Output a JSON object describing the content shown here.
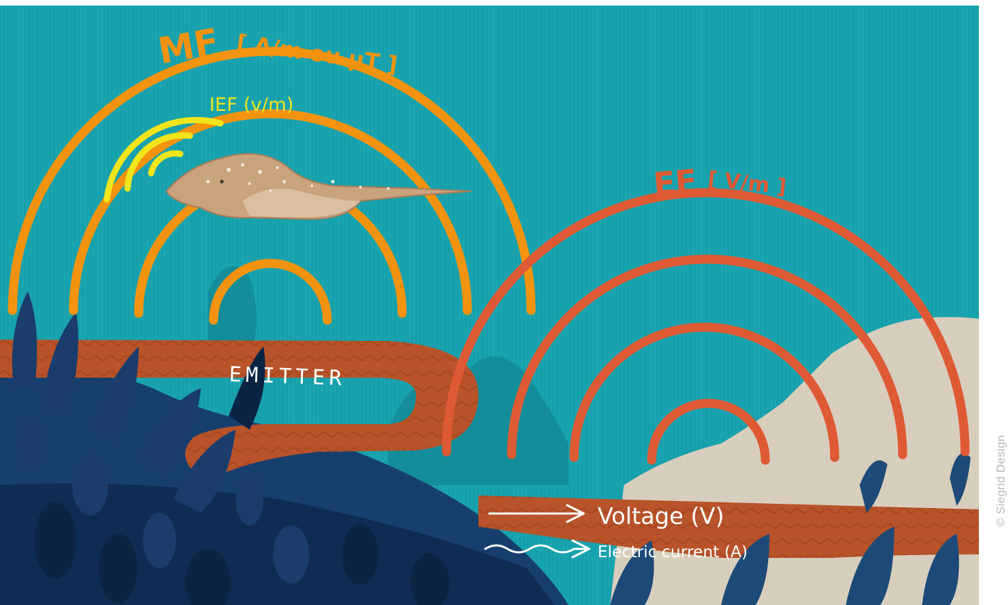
{
  "labels": {
    "mf": "MF",
    "mf_units": "[ A/m ou μT ]",
    "ief": "IEF (v/m)",
    "ef": "EF",
    "ef_units": "[ V/m ]",
    "emitter": "EMITTER",
    "voltage": "Voltage (V)",
    "current": "Electric current (A)"
  },
  "credit": "© Siegrid Design",
  "colors": {
    "water": "#17a0ab",
    "water_dark": "#0f8792",
    "mf_arcs": "#f4930f",
    "ief_arcs": "#f2e51c",
    "ef_arcs": "#de5a34",
    "cable": "#b8532a",
    "seabed_dark": "#163f6e",
    "seabed_navy": "#0f2c52",
    "sand": "#d9cfbf",
    "text_white": "#ffffff",
    "ray": "#c9a27e"
  },
  "icons": [
    "stingray-illustration",
    "seaweed-illustration",
    "arrow-right-icon",
    "wavy-arrow-icon"
  ]
}
